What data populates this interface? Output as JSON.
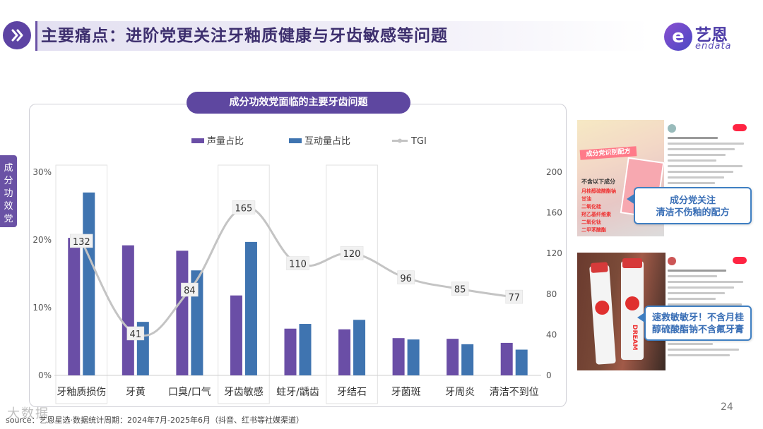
{
  "header": {
    "title": "主要痛点：进阶党更关注牙釉质健康与牙齿敏感等问题",
    "logo_cn": "艺恩",
    "logo_en": "endata",
    "logo_mark": "e"
  },
  "side_tab": {
    "label": "成分功效党"
  },
  "chart_pill": "成分功效党面临的主要牙齿问题",
  "chart_data": {
    "type": "bar",
    "title": "成分功效党面临的主要牙齿问题",
    "categories": [
      "牙釉质损伤",
      "牙黄",
      "口臭/口气",
      "牙齿敏感",
      "蛀牙/龋齿",
      "牙结石",
      "牙菌斑",
      "牙周炎",
      "清洁不到位"
    ],
    "series": [
      {
        "name": "声量占比",
        "type": "bar",
        "axis": "left",
        "color": "#6a4ea6",
        "values": [
          20.3,
          19.2,
          18.4,
          11.8,
          6.9,
          6.8,
          5.5,
          5.4,
          4.8
        ]
      },
      {
        "name": "互动量占比",
        "type": "bar",
        "axis": "left",
        "color": "#3f74b0",
        "values": [
          27.0,
          7.9,
          15.5,
          19.7,
          7.6,
          8.2,
          5.3,
          4.6,
          3.8
        ]
      },
      {
        "name": "TGI",
        "type": "line",
        "axis": "right",
        "color": "#c4c4c4",
        "values": [
          132,
          41,
          84,
          165,
          110,
          120,
          96,
          85,
          77
        ]
      }
    ],
    "y_left": {
      "ticks": [
        "0%",
        "10%",
        "20%",
        "30%"
      ],
      "ylim": [
        0,
        30
      ]
    },
    "y_right": {
      "ticks": [
        "0",
        "40",
        "80",
        "120",
        "160",
        "200"
      ],
      "ylim": [
        0,
        200
      ]
    },
    "highlighted_categories": [
      "牙釉质损伤",
      "牙齿敏感",
      "牙结石"
    ],
    "legend_position": "top-center",
    "grid": false
  },
  "screenshots": {
    "post1": {
      "banner": "成分党识别配方",
      "label": "不含以下成分",
      "list": [
        "月桂醇硫酸酯钠",
        "甘油",
        "二氧化硅",
        "羟乙基纤维素",
        "二氧化钛",
        "二甲苯酸酯"
      ],
      "callout_line1": "成分党关注",
      "callout_line2": "清洁不伤釉的配方"
    },
    "post2": {
      "brand": "DREAM",
      "callout_line1": "速救敏敏牙！不含月桂",
      "callout_line2": "醇硫酸酯钠不含氟牙膏"
    }
  },
  "footer": {
    "source": "source：艺恩星选·数据统计周期：2024年7月-2025年6月（抖音、红书等社媒渠道）",
    "watermark": "大数据",
    "page": "24"
  }
}
